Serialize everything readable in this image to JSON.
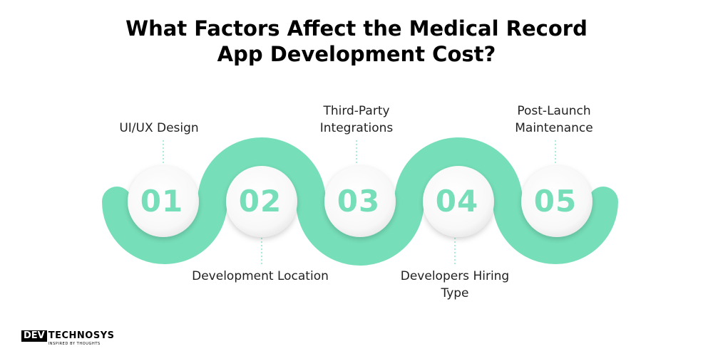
{
  "title": {
    "line1": "What Factors Affect the Medical Record",
    "line2": "App Development Cost?"
  },
  "colors": {
    "accent": "#76dfb9",
    "circle": "#ffffff",
    "text": "#222222"
  },
  "steps": [
    {
      "number": "01",
      "label_lines": [
        "UI/UX Design"
      ]
    },
    {
      "number": "02",
      "label_lines": [
        "Development Location"
      ]
    },
    {
      "number": "03",
      "label_lines": [
        "Third-Party",
        "Integrations"
      ]
    },
    {
      "number": "04",
      "label_lines": [
        "Developers Hiring",
        "Type"
      ]
    },
    {
      "number": "05",
      "label_lines": [
        "Post-Launch",
        "Maintenance"
      ]
    }
  ],
  "logo": {
    "mark": "DEV",
    "name": "TECHNOSYS",
    "tagline": "INSPIRED BY THOUGHTS"
  }
}
